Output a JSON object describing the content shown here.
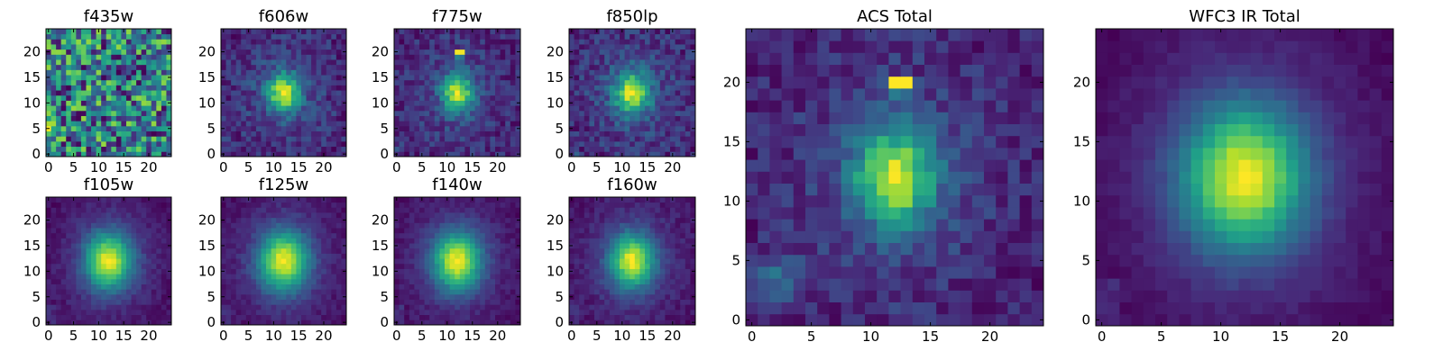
{
  "colors": {
    "colormap": "viridis",
    "axes_frame": "#000000",
    "background": "#ffffff"
  },
  "chart_data": [
    {
      "type": "heatmap",
      "title": "f435w",
      "grid_size": [
        25,
        25
      ],
      "xlim": [
        -0.5,
        24.5
      ],
      "ylim": [
        -0.5,
        24.5
      ],
      "xticks": [
        0,
        5,
        10,
        15,
        20
      ],
      "yticks": [
        0,
        5,
        10,
        15,
        20
      ],
      "grid": false,
      "pattern": {
        "kind": "noise",
        "level": 0.72,
        "noise": 0.28,
        "seed": 11
      }
    },
    {
      "type": "heatmap",
      "title": "f606w",
      "grid_size": [
        25,
        25
      ],
      "xlim": [
        -0.5,
        24.5
      ],
      "ylim": [
        -0.5,
        24.5
      ],
      "xticks": [
        0,
        5,
        10,
        15,
        20
      ],
      "yticks": [
        0,
        5,
        10,
        15,
        20
      ],
      "grid": false,
      "pattern": {
        "kind": "blob",
        "center": [
          12,
          12
        ],
        "sigma": [
          2.2,
          2.6
        ],
        "background": 0.3,
        "noise": 0.12,
        "seed": 21
      }
    },
    {
      "type": "heatmap",
      "title": "f775w",
      "grid_size": [
        25,
        25
      ],
      "xlim": [
        -0.5,
        24.5
      ],
      "ylim": [
        -0.5,
        24.5
      ],
      "xticks": [
        0,
        5,
        10,
        15,
        20
      ],
      "yticks": [
        0,
        5,
        10,
        15,
        20
      ],
      "grid": false,
      "pattern": {
        "kind": "blob",
        "center": [
          12,
          12
        ],
        "sigma": [
          2.0,
          2.4
        ],
        "background": 0.25,
        "noise": 0.12,
        "seed": 31,
        "hot_pixel": [
          12,
          20
        ]
      }
    },
    {
      "type": "heatmap",
      "title": "f850lp",
      "grid_size": [
        25,
        25
      ],
      "xlim": [
        -0.5,
        24.5
      ],
      "ylim": [
        -0.5,
        24.5
      ],
      "xticks": [
        0,
        5,
        10,
        15,
        20
      ],
      "yticks": [
        0,
        5,
        10,
        15,
        20
      ],
      "grid": false,
      "pattern": {
        "kind": "blob",
        "center": [
          12,
          12
        ],
        "sigma": [
          2.4,
          2.8
        ],
        "background": 0.32,
        "noise": 0.12,
        "seed": 41
      }
    },
    {
      "type": "heatmap",
      "title": "f105w",
      "grid_size": [
        25,
        25
      ],
      "xlim": [
        -0.5,
        24.5
      ],
      "ylim": [
        -0.5,
        24.5
      ],
      "xticks": [
        0,
        5,
        10,
        15,
        20
      ],
      "yticks": [
        0,
        5,
        10,
        15,
        20
      ],
      "grid": false,
      "pattern": {
        "kind": "blob",
        "center": [
          12,
          12
        ],
        "sigma": [
          3.2,
          3.8
        ],
        "background": 0.15,
        "noise": 0.05,
        "seed": 51
      }
    },
    {
      "type": "heatmap",
      "title": "f125w",
      "grid_size": [
        25,
        25
      ],
      "xlim": [
        -0.5,
        24.5
      ],
      "ylim": [
        -0.5,
        24.5
      ],
      "xticks": [
        0,
        5,
        10,
        15,
        20
      ],
      "yticks": [
        0,
        5,
        10,
        15,
        20
      ],
      "grid": false,
      "pattern": {
        "kind": "blob",
        "center": [
          12,
          12
        ],
        "sigma": [
          3.4,
          4.0
        ],
        "background": 0.16,
        "noise": 0.05,
        "seed": 61
      }
    },
    {
      "type": "heatmap",
      "title": "f140w",
      "grid_size": [
        25,
        25
      ],
      "xlim": [
        -0.5,
        24.5
      ],
      "ylim": [
        -0.5,
        24.5
      ],
      "xticks": [
        0,
        5,
        10,
        15,
        20
      ],
      "yticks": [
        0,
        5,
        10,
        15,
        20
      ],
      "grid": false,
      "pattern": {
        "kind": "blob",
        "center": [
          12,
          12
        ],
        "sigma": [
          3.3,
          3.9
        ],
        "background": 0.15,
        "noise": 0.05,
        "seed": 71
      }
    },
    {
      "type": "heatmap",
      "title": "f160w",
      "grid_size": [
        25,
        25
      ],
      "xlim": [
        -0.5,
        24.5
      ],
      "ylim": [
        -0.5,
        24.5
      ],
      "xticks": [
        0,
        5,
        10,
        15,
        20
      ],
      "yticks": [
        0,
        5,
        10,
        15,
        20
      ],
      "grid": false,
      "pattern": {
        "kind": "blob",
        "center": [
          12,
          12
        ],
        "sigma": [
          3.0,
          3.6
        ],
        "background": 0.14,
        "noise": 0.06,
        "seed": 81
      }
    },
    {
      "type": "heatmap",
      "title": "ACS Total",
      "grid_size": [
        25,
        25
      ],
      "xlim": [
        -0.5,
        24.5
      ],
      "ylim": [
        -0.5,
        24.5
      ],
      "xticks": [
        0,
        5,
        10,
        15,
        20
      ],
      "yticks": [
        0,
        5,
        10,
        15,
        20
      ],
      "grid": false,
      "pattern": {
        "kind": "blob",
        "center": [
          12,
          12
        ],
        "sigma": [
          2.3,
          2.8
        ],
        "background": 0.28,
        "noise": 0.1,
        "seed": 91,
        "hot_pixel": [
          12,
          20
        ],
        "corner_glow": [
          2,
          3
        ]
      }
    },
    {
      "type": "heatmap",
      "title": "WFC3 IR Total",
      "grid_size": [
        25,
        25
      ],
      "xlim": [
        -0.5,
        24.5
      ],
      "ylim": [
        -0.5,
        24.5
      ],
      "xticks": [
        0,
        5,
        10,
        15,
        20
      ],
      "yticks": [
        0,
        5,
        10,
        15,
        20
      ],
      "grid": false,
      "pattern": {
        "kind": "blob",
        "center": [
          12,
          12
        ],
        "sigma": [
          3.6,
          4.2
        ],
        "background": 0.13,
        "noise": 0.03,
        "seed": 101
      }
    }
  ]
}
